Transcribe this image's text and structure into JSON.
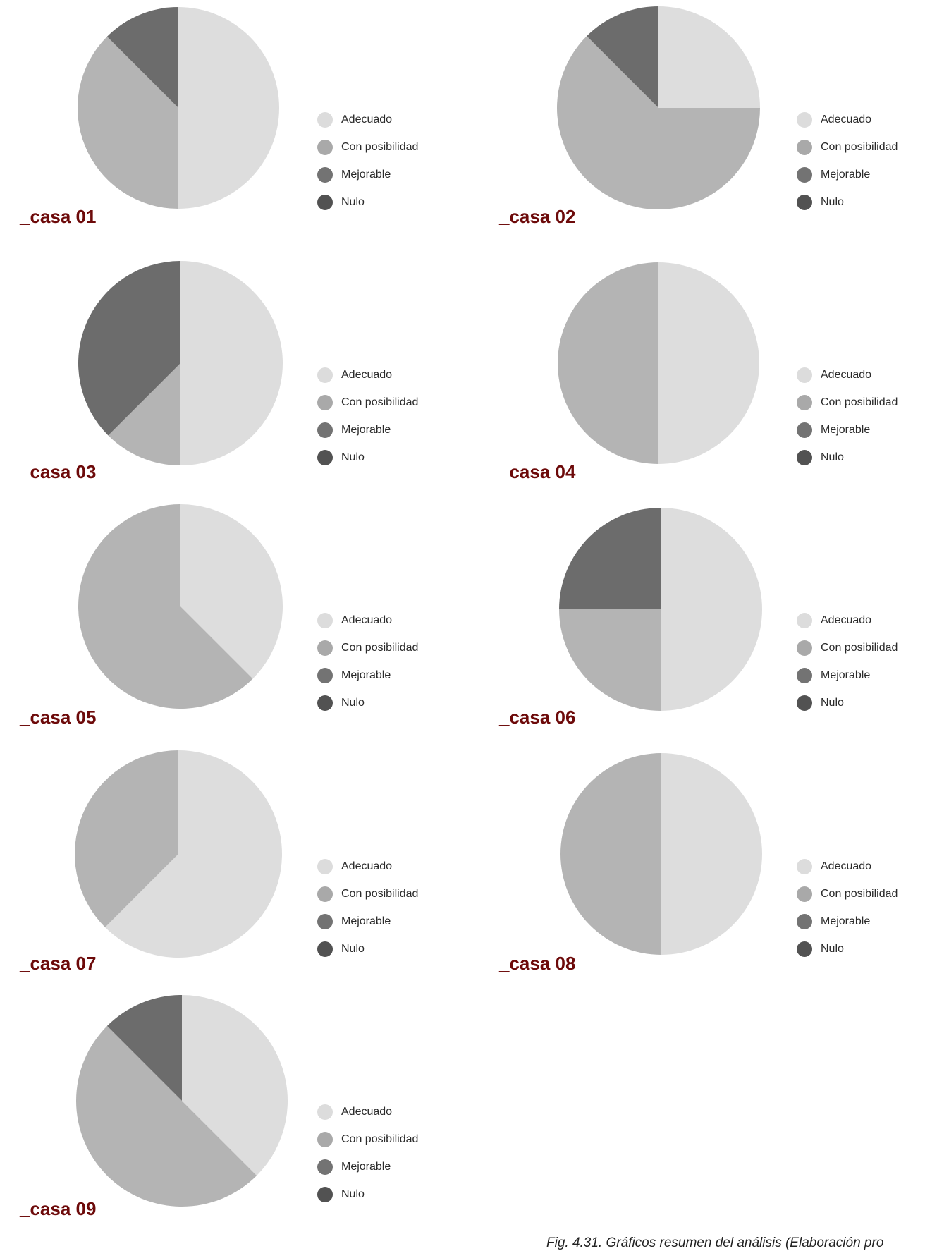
{
  "legend": [
    {
      "label": "Adecuado",
      "color": "#dcdcdc"
    },
    {
      "label": "Con posibilidad",
      "color": "#a9a9a9"
    },
    {
      "label": "Mejorable",
      "color": "#737373"
    },
    {
      "label": "Nulo",
      "color": "#525252"
    }
  ],
  "slice_colors": {
    "Adecuado": "#dddddd",
    "Con posibilidad": "#b4b4b4",
    "Mejorable": "#6c6c6c",
    "Nulo": "#4f4f4f"
  },
  "caption": "Fig. 4.31. Gráficos resumen del análisis (Elaboración pro",
  "chart_data": [
    {
      "type": "pie",
      "title": "_casa 01",
      "categories": [
        "Adecuado",
        "Con posibilidad",
        "Mejorable",
        "Nulo"
      ],
      "values": [
        50,
        37.5,
        12.5,
        0
      ]
    },
    {
      "type": "pie",
      "title": "_casa 02",
      "categories": [
        "Adecuado",
        "Con posibilidad",
        "Mejorable",
        "Nulo"
      ],
      "values": [
        25,
        62.5,
        12.5,
        0
      ]
    },
    {
      "type": "pie",
      "title": "_casa 03",
      "categories": [
        "Adecuado",
        "Con posibilidad",
        "Mejorable",
        "Nulo"
      ],
      "values": [
        50,
        12.5,
        37.5,
        0
      ]
    },
    {
      "type": "pie",
      "title": "_casa 04",
      "categories": [
        "Adecuado",
        "Con posibilidad",
        "Mejorable",
        "Nulo"
      ],
      "values": [
        50,
        50,
        0,
        0
      ]
    },
    {
      "type": "pie",
      "title": "_casa 05",
      "categories": [
        "Adecuado",
        "Con posibilidad",
        "Mejorable",
        "Nulo"
      ],
      "values": [
        37.5,
        62.5,
        0,
        0
      ]
    },
    {
      "type": "pie",
      "title": "_casa 06",
      "categories": [
        "Adecuado",
        "Con posibilidad",
        "Mejorable",
        "Nulo"
      ],
      "values": [
        50,
        25,
        25,
        0
      ]
    },
    {
      "type": "pie",
      "title": "_casa 07",
      "categories": [
        "Adecuado",
        "Con posibilidad",
        "Mejorable",
        "Nulo"
      ],
      "values": [
        62.5,
        37.5,
        0,
        0
      ]
    },
    {
      "type": "pie",
      "title": "_casa 08",
      "categories": [
        "Adecuado",
        "Con posibilidad",
        "Mejorable",
        "Nulo"
      ],
      "values": [
        50,
        50,
        0,
        0
      ]
    },
    {
      "type": "pie",
      "title": "_casa 09",
      "categories": [
        "Adecuado",
        "Con posibilidad",
        "Mejorable",
        "Nulo"
      ],
      "values": [
        37.5,
        50,
        12.5,
        0
      ]
    }
  ]
}
